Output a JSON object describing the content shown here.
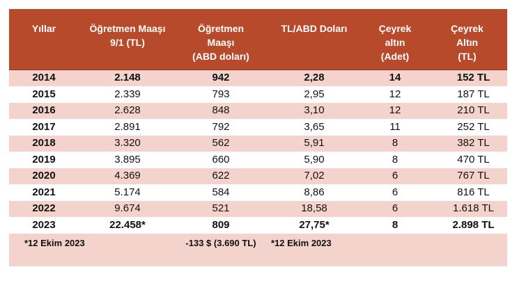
{
  "headers": [
    [
      "Yıllar"
    ],
    [
      "Öğretmen Maaşı",
      "9/1 (TL)"
    ],
    [
      "Öğretmen",
      "Maaşı",
      "(ABD doları)"
    ],
    [
      "TL/ABD Doları"
    ],
    [
      "Çeyrek",
      "altın",
      "(Adet)"
    ],
    [
      "Çeyrek",
      "Altın",
      "(TL)"
    ]
  ],
  "rows": [
    [
      "2014",
      "2.148",
      "942",
      "2,28",
      "14",
      "152 TL"
    ],
    [
      "2015",
      "2.339",
      "793",
      "2,95",
      "12",
      "187 TL"
    ],
    [
      "2016",
      "2.628",
      "848",
      "3,10",
      "12",
      "210 TL"
    ],
    [
      "2017",
      "2.891",
      "792",
      "3,65",
      "11",
      "252 TL"
    ],
    [
      "2018",
      "3.320",
      "562",
      "5,91",
      "8",
      "382 TL"
    ],
    [
      "2019",
      "3.895",
      "660",
      "5,90",
      "8",
      "470 TL"
    ],
    [
      "2020",
      "4.369",
      "622",
      "7,02",
      "6",
      "767 TL"
    ],
    [
      "2021",
      "5.174",
      "584",
      "8,86",
      "6",
      "816 TL"
    ],
    [
      "2022",
      "9.674",
      "521",
      "18,58",
      "6",
      "1.618 TL"
    ],
    [
      "2023",
      "22.458*",
      "809",
      "27,75*",
      "8",
      "2.898 TL"
    ]
  ],
  "notes": {
    "salary_note": "*12 Ekim 2023",
    "usd_note": "-133 $ (3.690 TL)",
    "rate_note": "*12 Ekim 2023"
  },
  "colors": {
    "header_bg": "#b84a2c",
    "header_text": "#ffffff",
    "row_pink": "#f3d3cc",
    "row_white": "#ffffff"
  }
}
